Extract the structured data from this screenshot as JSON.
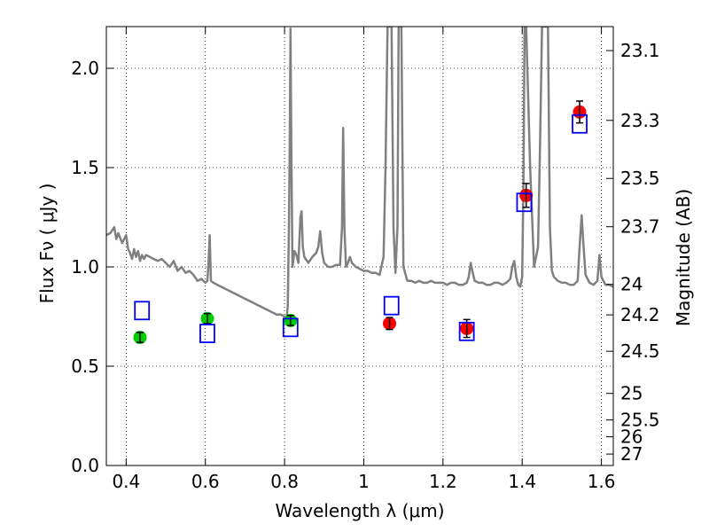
{
  "chart_data": {
    "type": "scatter",
    "xlabel": "Wavelength  λ (μm)",
    "ylabel_left": "Flux  Fν  ( μJy )",
    "ylabel_right": "Magnitude (AB)",
    "xlim": [
      0.35,
      1.63
    ],
    "ylim": [
      0.0,
      2.21
    ],
    "grid": true,
    "x_ticks": [
      {
        "value": 0.4,
        "label": "0.4"
      },
      {
        "value": 0.6,
        "label": "0.6"
      },
      {
        "value": 0.8,
        "label": "0.8"
      },
      {
        "value": 1.0,
        "label": "1"
      },
      {
        "value": 1.2,
        "label": "1.2"
      },
      {
        "value": 1.4,
        "label": "1.4"
      },
      {
        "value": 1.6,
        "label": "1.6"
      }
    ],
    "y_ticks": [
      {
        "value": 0.0,
        "label": "0.0"
      },
      {
        "value": 0.5,
        "label": "0.5"
      },
      {
        "value": 1.0,
        "label": "1.0"
      },
      {
        "value": 1.5,
        "label": "1.5"
      },
      {
        "value": 2.0,
        "label": "2.0"
      }
    ],
    "mag_ticks": [
      {
        "value": 23.1,
        "label": "23.1"
      },
      {
        "value": 23.3,
        "label": "23.3"
      },
      {
        "value": 23.5,
        "label": "23.5"
      },
      {
        "value": 23.7,
        "label": "23.7"
      },
      {
        "value": 24,
        "label": "24"
      },
      {
        "value": 24.2,
        "label": "24.2"
      },
      {
        "value": 24.5,
        "label": "24.5"
      },
      {
        "value": 25,
        "label": "25"
      },
      {
        "value": 25.5,
        "label": "25.5"
      },
      {
        "value": 26,
        "label": "26"
      },
      {
        "value": 27,
        "label": "27"
      }
    ],
    "spectrum": {
      "color": "#808080",
      "points": [
        [
          0.35,
          1.16
        ],
        [
          0.36,
          1.17
        ],
        [
          0.37,
          1.2
        ],
        [
          0.375,
          1.14
        ],
        [
          0.38,
          1.17
        ],
        [
          0.39,
          1.12
        ],
        [
          0.4,
          1.16
        ],
        [
          0.405,
          1.09
        ],
        [
          0.41,
          1.07
        ],
        [
          0.415,
          1.04
        ],
        [
          0.42,
          1.09
        ],
        [
          0.425,
          1.05
        ],
        [
          0.43,
          1.08
        ],
        [
          0.435,
          1.03
        ],
        [
          0.44,
          1.06
        ],
        [
          0.445,
          1.04
        ],
        [
          0.45,
          1.06
        ],
        [
          0.46,
          1.05
        ],
        [
          0.47,
          1.04
        ],
        [
          0.48,
          1.03
        ],
        [
          0.49,
          1.04
        ],
        [
          0.5,
          1.02
        ],
        [
          0.51,
          1.0
        ],
        [
          0.52,
          1.03
        ],
        [
          0.53,
          0.98
        ],
        [
          0.54,
          1.0
        ],
        [
          0.55,
          0.97
        ],
        [
          0.56,
          0.98
        ],
        [
          0.57,
          0.96
        ],
        [
          0.58,
          0.93
        ],
        [
          0.59,
          0.94
        ],
        [
          0.6,
          0.92
        ],
        [
          0.605,
          0.93
        ],
        [
          0.608,
          1.02
        ],
        [
          0.611,
          1.16
        ],
        [
          0.614,
          0.93
        ],
        [
          0.62,
          0.92
        ],
        [
          0.63,
          0.91
        ],
        [
          0.64,
          0.9
        ],
        [
          0.65,
          0.89
        ],
        [
          0.66,
          0.88
        ],
        [
          0.67,
          0.87
        ],
        [
          0.68,
          0.86
        ],
        [
          0.69,
          0.85
        ],
        [
          0.7,
          0.84
        ],
        [
          0.71,
          0.83
        ],
        [
          0.72,
          0.82
        ],
        [
          0.73,
          0.81
        ],
        [
          0.74,
          0.8
        ],
        [
          0.75,
          0.79
        ],
        [
          0.76,
          0.78
        ],
        [
          0.77,
          0.77
        ],
        [
          0.78,
          0.76
        ],
        [
          0.79,
          0.76
        ],
        [
          0.8,
          0.75
        ],
        [
          0.805,
          0.74
        ],
        [
          0.808,
          0.8
        ],
        [
          0.811,
          1.2
        ],
        [
          0.813,
          1.6
        ],
        [
          0.815,
          2.2
        ],
        [
          0.817,
          1.6
        ],
        [
          0.82,
          1.0
        ],
        [
          0.825,
          1.08
        ],
        [
          0.83,
          1.06
        ],
        [
          0.835,
          1.02
        ],
        [
          0.84,
          1.25
        ],
        [
          0.843,
          1.28
        ],
        [
          0.846,
          1.1
        ],
        [
          0.85,
          1.05
        ],
        [
          0.86,
          1.02
        ],
        [
          0.87,
          1.05
        ],
        [
          0.88,
          1.07
        ],
        [
          0.885,
          1.1
        ],
        [
          0.89,
          1.18
        ],
        [
          0.895,
          1.07
        ],
        [
          0.9,
          1.02
        ],
        [
          0.91,
          1.0
        ],
        [
          0.92,
          1.0
        ],
        [
          0.93,
          1.01
        ],
        [
          0.94,
          1.01
        ],
        [
          0.945,
          1.2
        ],
        [
          0.948,
          1.7
        ],
        [
          0.951,
          1.2
        ],
        [
          0.955,
          1.0
        ],
        [
          0.96,
          1.02
        ],
        [
          0.965,
          1.05
        ],
        [
          0.97,
          1.02
        ],
        [
          0.98,
          1.0
        ],
        [
          0.99,
          0.99
        ],
        [
          1.0,
          0.98
        ],
        [
          1.01,
          0.98
        ],
        [
          1.02,
          0.97
        ],
        [
          1.03,
          0.97
        ],
        [
          1.04,
          0.96
        ],
        [
          1.05,
          1.05
        ],
        [
          1.055,
          1.5
        ],
        [
          1.06,
          2.21
        ],
        [
          1.07,
          2.21
        ],
        [
          1.075,
          1.2
        ],
        [
          1.08,
          0.97
        ],
        [
          1.085,
          1.2
        ],
        [
          1.088,
          2.21
        ],
        [
          1.095,
          2.21
        ],
        [
          1.1,
          1.0
        ],
        [
          1.11,
          0.93
        ],
        [
          1.12,
          0.93
        ],
        [
          1.13,
          0.92
        ],
        [
          1.14,
          0.93
        ],
        [
          1.15,
          0.92
        ],
        [
          1.16,
          0.92
        ],
        [
          1.17,
          0.93
        ],
        [
          1.18,
          0.92
        ],
        [
          1.19,
          0.92
        ],
        [
          1.2,
          0.92
        ],
        [
          1.21,
          0.91
        ],
        [
          1.22,
          0.92
        ],
        [
          1.23,
          0.92
        ],
        [
          1.24,
          0.91
        ],
        [
          1.25,
          0.91
        ],
        [
          1.26,
          0.92
        ],
        [
          1.265,
          0.95
        ],
        [
          1.27,
          1.02
        ],
        [
          1.275,
          0.97
        ],
        [
          1.28,
          0.93
        ],
        [
          1.29,
          0.92
        ],
        [
          1.3,
          0.92
        ],
        [
          1.31,
          0.91
        ],
        [
          1.32,
          0.91
        ],
        [
          1.33,
          0.92
        ],
        [
          1.34,
          0.92
        ],
        [
          1.35,
          0.91
        ],
        [
          1.36,
          0.92
        ],
        [
          1.37,
          0.94
        ],
        [
          1.375,
          1.0
        ],
        [
          1.38,
          1.03
        ],
        [
          1.385,
          0.95
        ],
        [
          1.39,
          0.91
        ],
        [
          1.395,
          0.9
        ],
        [
          1.4,
          0.95
        ],
        [
          1.403,
          1.4
        ],
        [
          1.406,
          2.21
        ],
        [
          1.41,
          2.21
        ],
        [
          1.42,
          1.5
        ],
        [
          1.43,
          1.0
        ],
        [
          1.44,
          1.1
        ],
        [
          1.445,
          1.6
        ],
        [
          1.45,
          2.21
        ],
        [
          1.465,
          2.21
        ],
        [
          1.47,
          1.2
        ],
        [
          1.475,
          0.98
        ],
        [
          1.48,
          0.95
        ],
        [
          1.49,
          0.93
        ],
        [
          1.5,
          0.92
        ],
        [
          1.51,
          0.92
        ],
        [
          1.52,
          0.91
        ],
        [
          1.53,
          0.91
        ],
        [
          1.54,
          0.93
        ],
        [
          1.545,
          1.1
        ],
        [
          1.55,
          1.26
        ],
        [
          1.555,
          1.1
        ],
        [
          1.56,
          0.96
        ],
        [
          1.57,
          0.92
        ],
        [
          1.58,
          0.91
        ],
        [
          1.59,
          0.93
        ],
        [
          1.595,
          1.06
        ],
        [
          1.6,
          0.95
        ],
        [
          1.61,
          0.91
        ],
        [
          1.62,
          0.91
        ],
        [
          1.63,
          0.9
        ]
      ]
    },
    "series": [
      {
        "marker": "circle",
        "color": "#00cc00",
        "points": [
          {
            "x": 0.435,
            "y": 0.645,
            "err": 0.025
          },
          {
            "x": 0.605,
            "y": 0.74,
            "err": 0.025
          },
          {
            "x": 0.815,
            "y": 0.73,
            "err": 0.025
          }
        ]
      },
      {
        "marker": "circle",
        "color": "#ff0000",
        "points": [
          {
            "x": 1.065,
            "y": 0.715,
            "err": 0.03
          },
          {
            "x": 1.26,
            "y": 0.69,
            "err": 0.045
          },
          {
            "x": 1.41,
            "y": 1.36,
            "err": 0.06
          },
          {
            "x": 1.545,
            "y": 1.78,
            "err": 0.055
          }
        ]
      },
      {
        "marker": "square",
        "color": "#0000ff",
        "points": [
          {
            "x": 0.44,
            "y": 0.78
          },
          {
            "x": 0.605,
            "y": 0.665
          },
          {
            "x": 0.815,
            "y": 0.695
          },
          {
            "x": 1.07,
            "y": 0.805
          },
          {
            "x": 1.26,
            "y": 0.675
          },
          {
            "x": 1.405,
            "y": 1.325
          },
          {
            "x": 1.545,
            "y": 1.72
          }
        ]
      }
    ]
  }
}
